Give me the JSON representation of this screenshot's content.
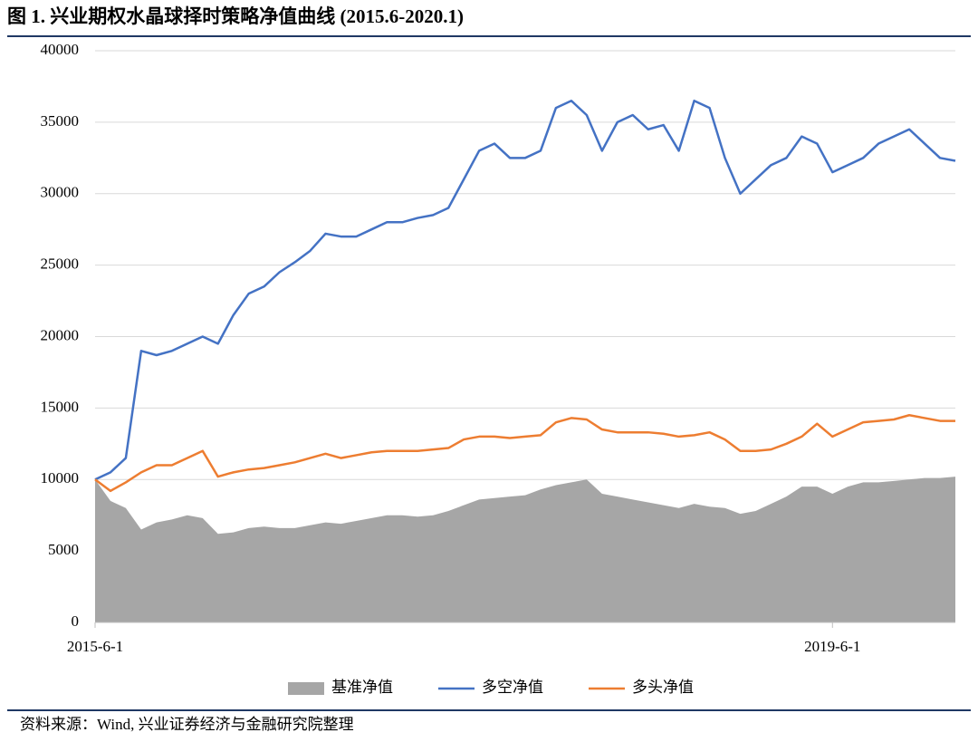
{
  "chart_data": {
    "type": "line",
    "title": "图 1. 兴业期权水晶球择时策略净值曲线 (2015.6-2020.1)",
    "source": "资料来源：Wind, 兴业证券经济与金融研究院整理",
    "categories": [
      "2015-6-1",
      null,
      null,
      null,
      null,
      null,
      null,
      null,
      null,
      null,
      null,
      null,
      null,
      null,
      null,
      null,
      null,
      null,
      null,
      null,
      null,
      null,
      null,
      null,
      null,
      null,
      null,
      null,
      null,
      null,
      null,
      null,
      null,
      null,
      null,
      null,
      null,
      null,
      null,
      null,
      null,
      null,
      null,
      null,
      null,
      null,
      null,
      null,
      "2019-6-1",
      null,
      null,
      null,
      null,
      null,
      null,
      null,
      null
    ],
    "series": [
      {
        "name": "基准净值",
        "type": "area",
        "color": "#a6a6a6",
        "values": [
          10000,
          8500,
          8000,
          6500,
          7000,
          7200,
          7500,
          7300,
          6200,
          6300,
          6600,
          6700,
          6600,
          6600,
          6800,
          7000,
          6900,
          7100,
          7300,
          7500,
          7500,
          7400,
          7500,
          7800,
          8200,
          8600,
          8700,
          8800,
          8900,
          9300,
          9600,
          9800,
          10000,
          9000,
          8800,
          8600,
          8400,
          8200,
          8000,
          8300,
          8100,
          8000,
          7600,
          7800,
          8300,
          8800,
          9500,
          9500,
          9000,
          9500,
          9800,
          9800,
          9900,
          10000,
          10100,
          10100,
          10200
        ]
      },
      {
        "name": "多空净值",
        "type": "line",
        "color": "#4472c4",
        "values": [
          10000,
          10500,
          11500,
          19000,
          18700,
          19000,
          19500,
          20000,
          19500,
          21500,
          23000,
          23500,
          24500,
          25200,
          26000,
          27200,
          27000,
          27000,
          27500,
          28000,
          28000,
          28300,
          28500,
          29000,
          31000,
          33000,
          33500,
          32500,
          32500,
          33000,
          36000,
          36500,
          35500,
          33000,
          35000,
          35500,
          34500,
          34800,
          33000,
          36500,
          36000,
          32500,
          30000,
          31000,
          32000,
          32500,
          34000,
          33500,
          31500,
          32000,
          32500,
          33500,
          34000,
          34500,
          33500,
          32500,
          32300
        ]
      },
      {
        "name": "多头净值",
        "type": "line",
        "color": "#ed7d31",
        "values": [
          10000,
          9200,
          9800,
          10500,
          11000,
          11000,
          11500,
          12000,
          10200,
          10500,
          10700,
          10800,
          11000,
          11200,
          11500,
          11800,
          11500,
          11700,
          11900,
          12000,
          12000,
          12000,
          12100,
          12200,
          12800,
          13000,
          13000,
          12900,
          13000,
          13100,
          14000,
          14300,
          14200,
          13500,
          13300,
          13300,
          13300,
          13200,
          13000,
          13100,
          13300,
          12800,
          12000,
          12000,
          12100,
          12500,
          13000,
          13900,
          13000,
          13500,
          14000,
          14100,
          14200,
          14500,
          14300,
          14100,
          14100
        ]
      }
    ],
    "ylim": [
      0,
      40000
    ],
    "yticks": [
      0,
      5000,
      10000,
      15000,
      20000,
      25000,
      30000,
      35000,
      40000
    ],
    "grid": true,
    "legend": "bottom"
  }
}
